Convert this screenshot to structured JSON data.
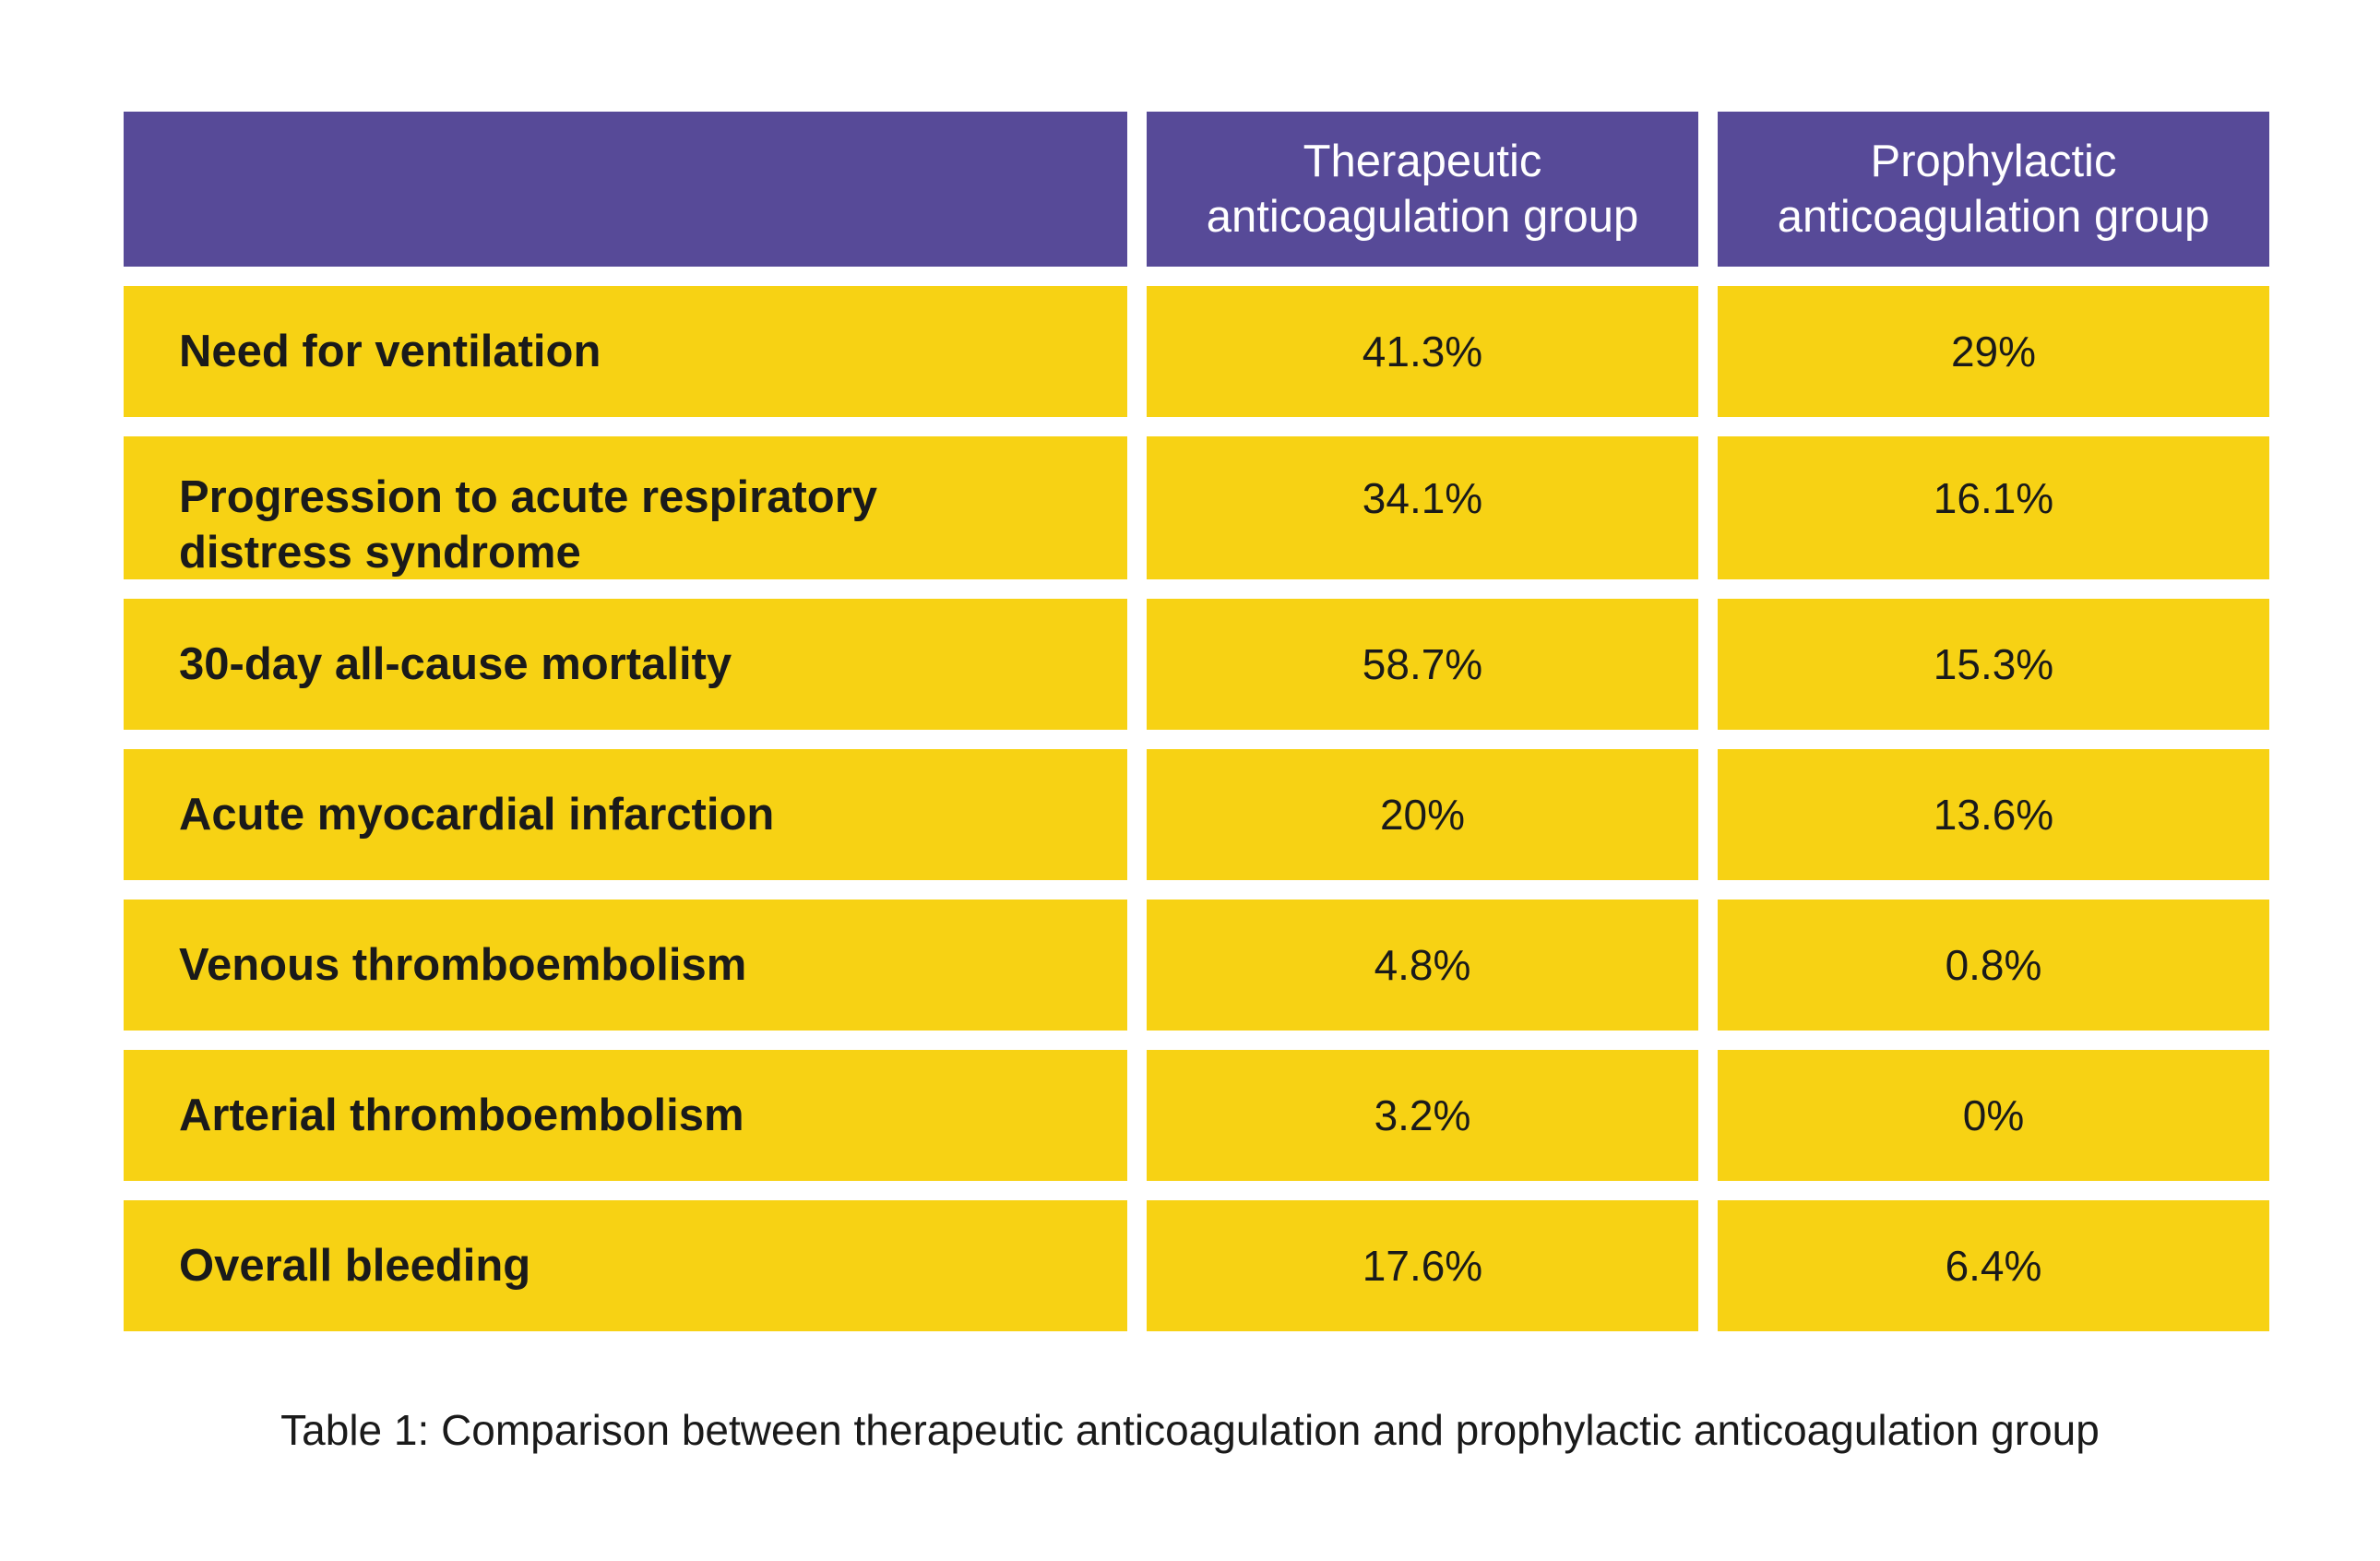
{
  "chart_data": {
    "type": "table",
    "columns": [
      "",
      "Therapeutic anticoagulation group",
      "Prophylactic anticoagulation group"
    ],
    "rows": [
      {
        "label": "Need for ventilation",
        "therapeutic": "41.3%",
        "prophylactic": "29%"
      },
      {
        "label": "Progression to acute respiratory distress syndrome",
        "therapeutic": "34.1%",
        "prophylactic": "16.1%"
      },
      {
        "label": "30-day all-cause mortality",
        "therapeutic": "58.7%",
        "prophylactic": "15.3%"
      },
      {
        "label": "Acute myocardial infarction",
        "therapeutic": "20%",
        "prophylactic": "13.6%"
      },
      {
        "label": "Venous thromboembolism",
        "therapeutic": "4.8%",
        "prophylactic": "0.8%"
      },
      {
        "label": "Arterial thromboembolism",
        "therapeutic": "3.2%",
        "prophylactic": "0%"
      },
      {
        "label": "Overall bleeding",
        "therapeutic": "17.6%",
        "prophylactic": "6.4%"
      }
    ],
    "caption": "Table 1: Comparison between therapeutic anticoagulation and prophylactic anticoagulation group"
  },
  "header": {
    "therapeutic_line1": "Therapeutic",
    "therapeutic_line2": "anticoagulation group",
    "prophylactic_line1": "Prophylactic",
    "prophylactic_line2": "anticoagulation group"
  },
  "row_label_lines": {
    "progression_line1": "Progression to acute respiratory",
    "progression_line2": "distress syndrome"
  },
  "colors": {
    "header_background": "#574a98",
    "cell_background": "#f7d214",
    "header_text": "#ffffff",
    "body_text": "#1a1a1a"
  }
}
